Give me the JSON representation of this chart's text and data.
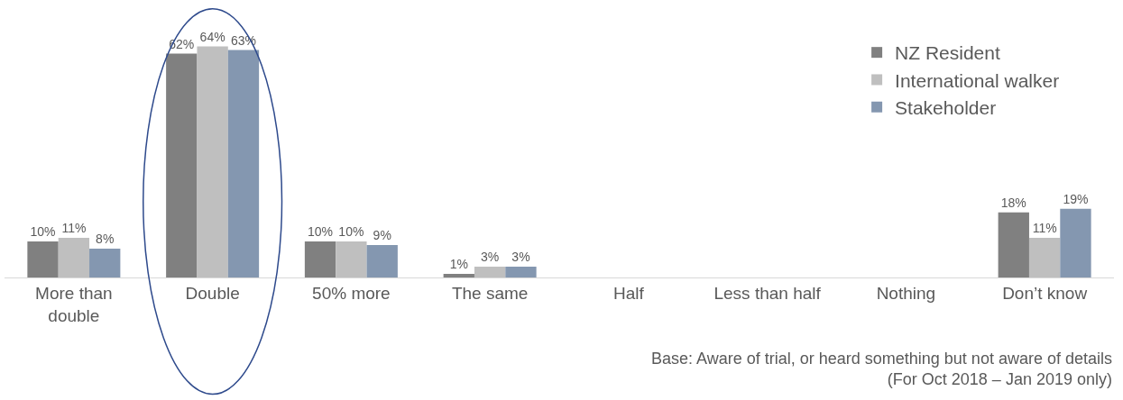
{
  "chart_data": {
    "type": "bar",
    "categories": [
      "More than\ndouble",
      "Double",
      "50% more",
      "The same",
      "Half",
      "Less than half",
      "Nothing",
      "Don’t know"
    ],
    "series": [
      {
        "name": "NZ Resident",
        "color": "#808080",
        "values": [
          10,
          62,
          10,
          1,
          null,
          null,
          null,
          18
        ],
        "value_labels": [
          "10%",
          "62%",
          "10%",
          "1%",
          null,
          null,
          null,
          "18%"
        ]
      },
      {
        "name": "International walker",
        "color": "#bfbfbf",
        "values": [
          11,
          64,
          10,
          3,
          null,
          null,
          null,
          11
        ],
        "value_labels": [
          "11%",
          "64%",
          "10%",
          "3%",
          null,
          null,
          null,
          "11%"
        ]
      },
      {
        "name": "Stakeholder",
        "color": "#8497b0",
        "values": [
          8,
          63,
          9,
          3,
          null,
          null,
          null,
          19
        ],
        "value_labels": [
          "8%",
          "63%",
          "9%",
          "3%",
          null,
          null,
          null,
          "19%"
        ]
      }
    ],
    "tick_labels": "x",
    "legend": "top right",
    "annotations": [
      "Base: Aware of trial, or heard something but not aware of details\n(For Oct 2018 – Jan 2019 only)"
    ]
  }
}
